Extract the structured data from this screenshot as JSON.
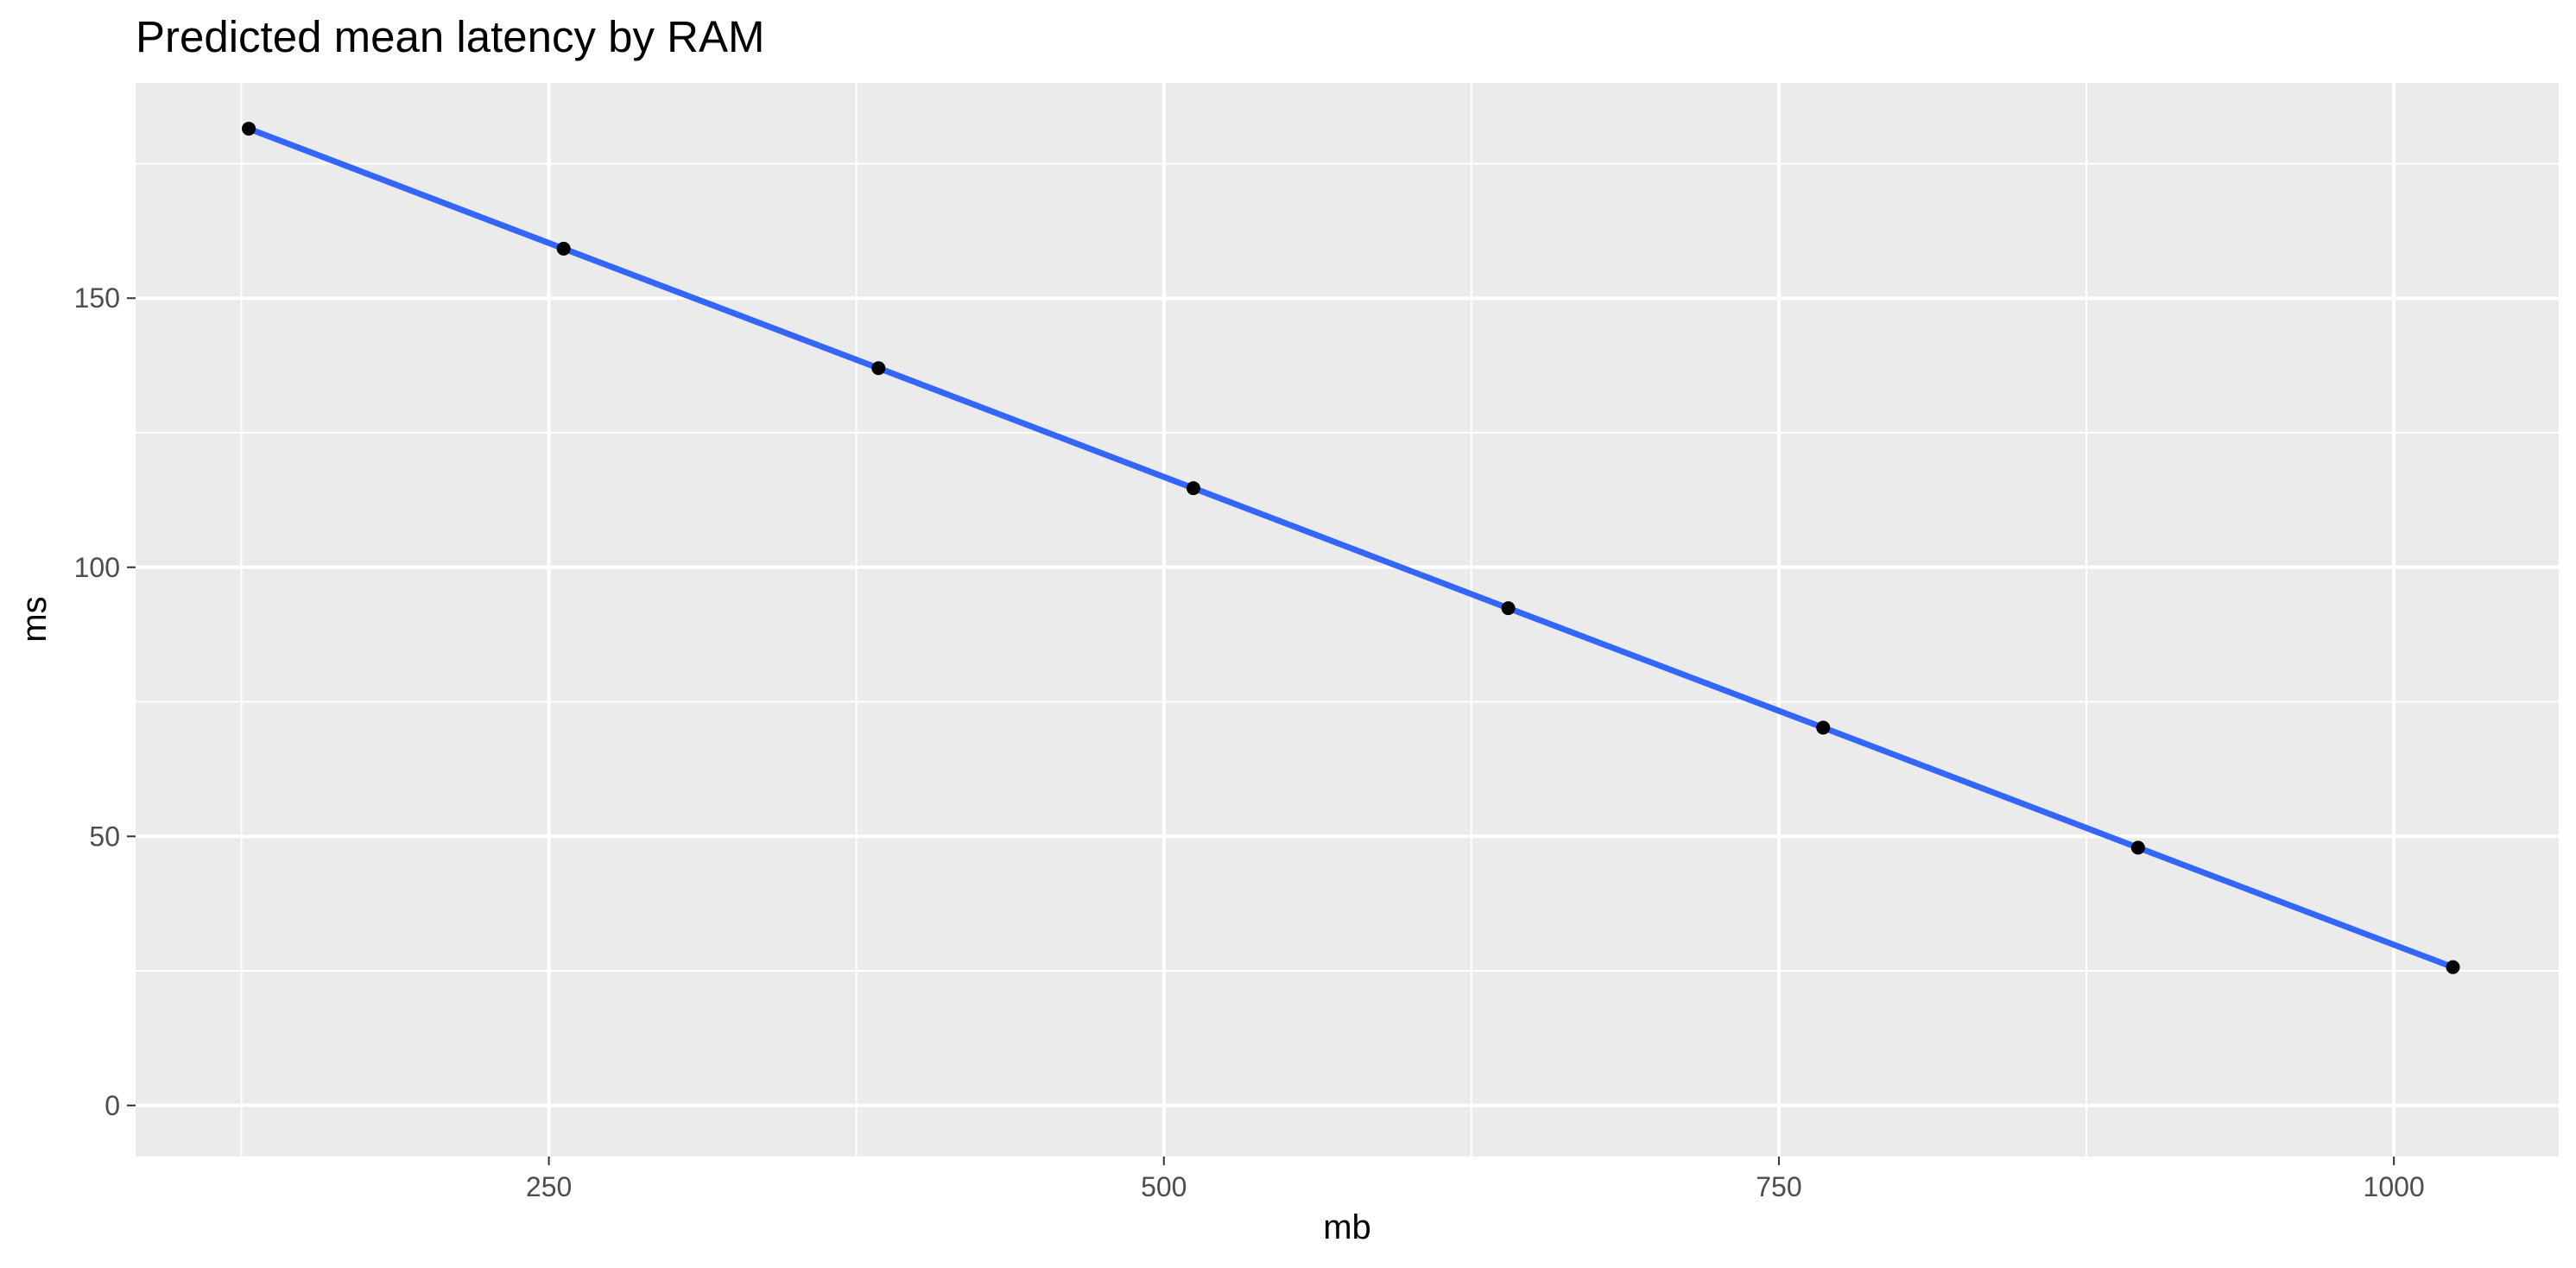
{
  "chart_data": {
    "type": "line",
    "title": "Predicted mean latency by RAM",
    "xlabel": "mb",
    "ylabel": "ms",
    "x_ticks": [
      250,
      500,
      750,
      1000
    ],
    "y_ticks": [
      0,
      50,
      100,
      150
    ],
    "xlim": [
      82,
      1067
    ],
    "ylim": [
      -9.5,
      190
    ],
    "grid": true,
    "colors": {
      "panel_background": "#EBEBEB",
      "gridline": "#FFFFFF",
      "line": "#3366FF",
      "point": "#000000",
      "tick_text": "#4D4D4D"
    },
    "series": [
      {
        "x": [
          128,
          256,
          384,
          512,
          640,
          768,
          896,
          1024
        ],
        "y": [
          181.5,
          159.2,
          137.0,
          114.7,
          92.4,
          70.2,
          47.9,
          25.7
        ]
      }
    ]
  }
}
